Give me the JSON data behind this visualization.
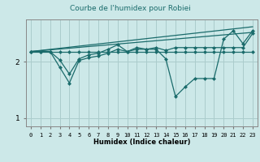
{
  "title": "Courbe de l'humidex pour Robiei",
  "xlabel": "Humidex (Indice chaleur)",
  "bg_color": "#cce8e8",
  "line_color": "#1a6b6b",
  "grid_color": "#aacccc",
  "xlim": [
    -0.5,
    23.5
  ],
  "ylim": [
    0.85,
    2.75
  ],
  "yticks": [
    1,
    2
  ],
  "xticks": [
    0,
    1,
    2,
    3,
    4,
    5,
    6,
    7,
    8,
    9,
    10,
    11,
    12,
    13,
    14,
    15,
    16,
    17,
    18,
    19,
    20,
    21,
    22,
    23
  ],
  "line1_x": [
    0,
    1,
    2,
    3,
    4,
    5,
    6,
    7,
    8,
    9,
    10,
    11,
    12,
    13,
    14,
    15,
    16,
    17,
    18,
    19,
    20,
    21,
    22,
    23
  ],
  "line1_y": [
    2.18,
    2.18,
    2.18,
    2.18,
    2.18,
    2.18,
    2.18,
    2.18,
    2.18,
    2.18,
    2.18,
    2.18,
    2.18,
    2.18,
    2.18,
    2.18,
    2.18,
    2.18,
    2.18,
    2.18,
    2.18,
    2.18,
    2.18,
    2.18
  ],
  "line2_x": [
    0,
    1,
    2,
    3,
    4,
    5,
    6,
    7,
    8,
    9,
    10,
    11,
    12,
    13,
    14,
    15,
    16,
    17,
    18,
    19,
    20,
    21,
    22,
    23
  ],
  "line2_y": [
    2.18,
    2.18,
    2.18,
    2.03,
    1.78,
    2.05,
    2.12,
    2.15,
    2.22,
    2.3,
    2.18,
    2.25,
    2.22,
    2.25,
    2.2,
    2.25,
    2.25,
    2.25,
    2.25,
    2.25,
    2.25,
    2.25,
    2.25,
    2.5
  ],
  "line3_x": [
    0,
    1,
    2,
    3,
    4,
    5,
    6,
    7,
    8,
    9,
    10,
    11,
    12,
    13,
    14,
    15,
    16,
    17,
    18,
    19,
    20,
    21,
    22,
    23
  ],
  "line3_y": [
    2.18,
    2.18,
    2.18,
    1.9,
    1.62,
    2.02,
    2.07,
    2.1,
    2.15,
    2.22,
    2.18,
    2.22,
    2.22,
    2.22,
    2.05,
    1.38,
    1.55,
    1.7,
    1.7,
    1.7,
    2.4,
    2.55,
    2.32,
    2.55
  ],
  "regline1_x": [
    0,
    23
  ],
  "regline1_y": [
    2.18,
    2.62
  ],
  "regline2_x": [
    0,
    23
  ],
  "regline2_y": [
    2.18,
    2.52
  ]
}
